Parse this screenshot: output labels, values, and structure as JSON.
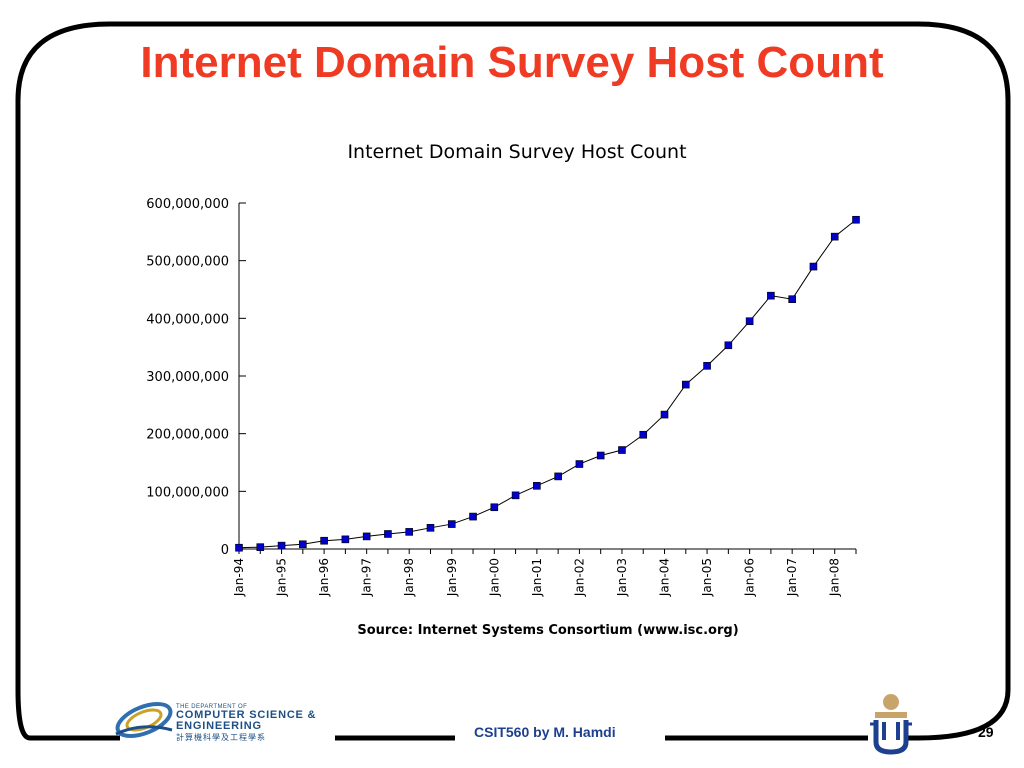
{
  "slide": {
    "title": "Internet Domain Survey Host Count",
    "footer_credit": "CSIT560 by M. Hamdi",
    "page_number": "29",
    "department_logo": {
      "line1": "THE DEPARTMENT OF",
      "line2": "COMPUTER SCIENCE &",
      "line3": "ENGINEERING",
      "line4": "計算機科學及工程學系"
    },
    "colors": {
      "title": "#ef3b24",
      "footer_credit": "#1d3f8f",
      "frame": "#000000",
      "marker": "#0000c8"
    }
  },
  "chart_data": {
    "type": "line",
    "title": "Internet Domain Survey Host Count",
    "source_note": "Source: Internet Systems Consortium (www.isc.org)",
    "x_tick_labels": [
      "Jan-94",
      "Jan-95",
      "Jan-96",
      "Jan-97",
      "Jan-98",
      "Jan-99",
      "Jan-00",
      "Jan-01",
      "Jan-02",
      "Jan-03",
      "Jan-04",
      "Jan-05",
      "Jan-06",
      "Jan-07",
      "Jan-08"
    ],
    "y_tick_labels": [
      "0",
      "100,000,000",
      "200,000,000",
      "300,000,000",
      "400,000,000",
      "500,000,000",
      "600,000,000"
    ],
    "ylim": [
      0,
      600000000
    ],
    "xlim": [
      "Jan-94",
      "Jul-08"
    ],
    "grid": false,
    "legend": "none",
    "x": [
      "Jan-94",
      "Jul-94",
      "Jan-95",
      "Jul-95",
      "Jan-96",
      "Jul-96",
      "Jan-97",
      "Jul-97",
      "Jan-98",
      "Jul-98",
      "Jan-99",
      "Jul-99",
      "Jan-00",
      "Jul-00",
      "Jan-01",
      "Jul-01",
      "Jan-02",
      "Jul-02",
      "Jan-03",
      "Jul-03",
      "Jan-04",
      "Jul-04",
      "Jan-05",
      "Jul-05",
      "Jan-06",
      "Jul-06",
      "Jan-07",
      "Jul-07",
      "Jan-08",
      "Jul-08"
    ],
    "series": [
      {
        "values": [
          2217000,
          3212000,
          5846000,
          8200000,
          14352000,
          16729000,
          21819000,
          26053000,
          29670000,
          36739000,
          43230000,
          56218000,
          72398000,
          93047000,
          109574000,
          125888000,
          147345000,
          162128000,
          171638000,
          198133000,
          233101000,
          285139000,
          317646000,
          353284000,
          394992000,
          439286000,
          433193000,
          489774000,
          541677000,
          570937000
        ]
      }
    ]
  }
}
